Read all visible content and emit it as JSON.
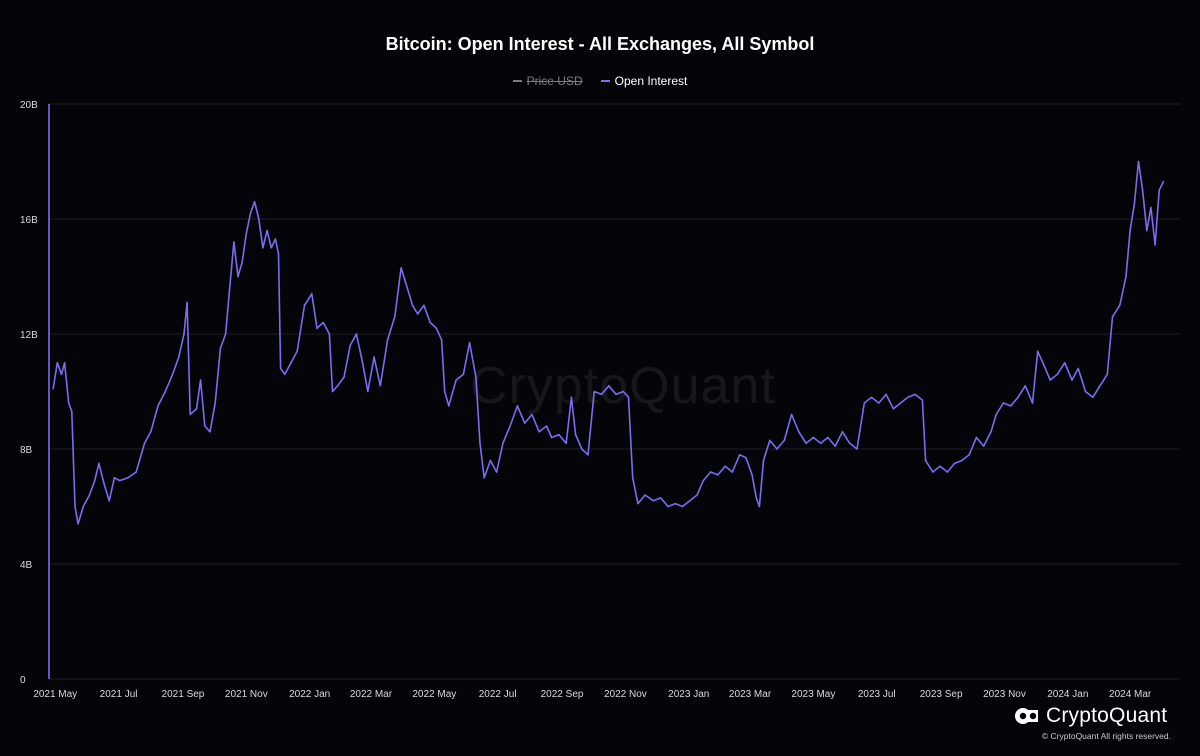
{
  "chart_data": {
    "type": "line",
    "title": "Bitcoin: Open Interest - All Exchanges, All Symbol",
    "legend": [
      {
        "name": "Price USD",
        "color": "#7a7a82",
        "hidden": true
      },
      {
        "name": "Open Interest",
        "color": "#7b6cf0",
        "hidden": false
      }
    ],
    "legend_position": "top-center",
    "ylim": [
      0,
      20000000000
    ],
    "y_ticks": [
      {
        "value": 0,
        "label": "0"
      },
      {
        "value": 4000000000,
        "label": "4B"
      },
      {
        "value": 8000000000,
        "label": "8B"
      },
      {
        "value": 12000000000,
        "label": "12B"
      },
      {
        "value": 16000000000,
        "label": "16B"
      },
      {
        "value": 20000000000,
        "label": "20B"
      }
    ],
    "xlim": [
      "2021-04-25",
      "2024-04-18"
    ],
    "x_ticks": [
      {
        "date": "2021-05-01",
        "label": "2021 May"
      },
      {
        "date": "2021-07-01",
        "label": "2021 Jul"
      },
      {
        "date": "2021-09-01",
        "label": "2021 Sep"
      },
      {
        "date": "2021-11-01",
        "label": "2021 Nov"
      },
      {
        "date": "2022-01-01",
        "label": "2022 Jan"
      },
      {
        "date": "2022-03-01",
        "label": "2022 Mar"
      },
      {
        "date": "2022-05-01",
        "label": "2022 May"
      },
      {
        "date": "2022-07-01",
        "label": "2022 Jul"
      },
      {
        "date": "2022-09-01",
        "label": "2022 Sep"
      },
      {
        "date": "2022-11-01",
        "label": "2022 Nov"
      },
      {
        "date": "2023-01-01",
        "label": "2023 Jan"
      },
      {
        "date": "2023-03-01",
        "label": "2023 Mar"
      },
      {
        "date": "2023-05-01",
        "label": "2023 May"
      },
      {
        "date": "2023-07-01",
        "label": "2023 Jul"
      },
      {
        "date": "2023-09-01",
        "label": "2023 Sep"
      },
      {
        "date": "2023-11-01",
        "label": "2023 Nov"
      },
      {
        "date": "2024-01-01",
        "label": "2024 Jan"
      },
      {
        "date": "2024-03-01",
        "label": "2024 Mar"
      }
    ],
    "grid": true,
    "series": [
      {
        "name": "Open Interest",
        "color": "#7b6cf0",
        "points": [
          [
            "2021-04-29",
            10.1
          ],
          [
            "2021-05-03",
            11.0
          ],
          [
            "2021-05-07",
            10.6
          ],
          [
            "2021-05-10",
            11.0
          ],
          [
            "2021-05-14",
            9.6
          ],
          [
            "2021-05-17",
            9.3
          ],
          [
            "2021-05-20",
            6.0
          ],
          [
            "2021-05-23",
            5.4
          ],
          [
            "2021-05-28",
            6.0
          ],
          [
            "2021-06-03",
            6.4
          ],
          [
            "2021-06-08",
            6.9
          ],
          [
            "2021-06-12",
            7.5
          ],
          [
            "2021-06-17",
            6.8
          ],
          [
            "2021-06-22",
            6.2
          ],
          [
            "2021-06-27",
            7.0
          ],
          [
            "2021-07-02",
            6.9
          ],
          [
            "2021-07-10",
            7.0
          ],
          [
            "2021-07-18",
            7.2
          ],
          [
            "2021-07-26",
            8.2
          ],
          [
            "2021-08-01",
            8.6
          ],
          [
            "2021-08-08",
            9.5
          ],
          [
            "2021-08-15",
            10.0
          ],
          [
            "2021-08-22",
            10.6
          ],
          [
            "2021-08-28",
            11.2
          ],
          [
            "2021-09-02",
            12.0
          ],
          [
            "2021-09-05",
            13.1
          ],
          [
            "2021-09-08",
            9.2
          ],
          [
            "2021-09-14",
            9.4
          ],
          [
            "2021-09-18",
            10.4
          ],
          [
            "2021-09-22",
            8.8
          ],
          [
            "2021-09-27",
            8.6
          ],
          [
            "2021-10-02",
            9.6
          ],
          [
            "2021-10-07",
            11.5
          ],
          [
            "2021-10-12",
            12.0
          ],
          [
            "2021-10-16",
            13.6
          ],
          [
            "2021-10-20",
            15.2
          ],
          [
            "2021-10-24",
            14.0
          ],
          [
            "2021-10-28",
            14.5
          ],
          [
            "2021-11-01",
            15.5
          ],
          [
            "2021-11-05",
            16.2
          ],
          [
            "2021-11-09",
            16.6
          ],
          [
            "2021-11-13",
            16.0
          ],
          [
            "2021-11-17",
            15.0
          ],
          [
            "2021-11-21",
            15.6
          ],
          [
            "2021-11-25",
            15.0
          ],
          [
            "2021-11-29",
            15.3
          ],
          [
            "2021-12-02",
            14.8
          ],
          [
            "2021-12-04",
            10.8
          ],
          [
            "2021-12-08",
            10.6
          ],
          [
            "2021-12-14",
            11.0
          ],
          [
            "2021-12-20",
            11.4
          ],
          [
            "2021-12-27",
            13.0
          ],
          [
            "2022-01-03",
            13.4
          ],
          [
            "2022-01-08",
            12.2
          ],
          [
            "2022-01-14",
            12.4
          ],
          [
            "2022-01-20",
            12.0
          ],
          [
            "2022-01-23",
            10.0
          ],
          [
            "2022-01-28",
            10.2
          ],
          [
            "2022-02-03",
            10.5
          ],
          [
            "2022-02-09",
            11.6
          ],
          [
            "2022-02-15",
            12.0
          ],
          [
            "2022-02-21",
            11.0
          ],
          [
            "2022-02-26",
            10.0
          ],
          [
            "2022-03-04",
            11.2
          ],
          [
            "2022-03-10",
            10.2
          ],
          [
            "2022-03-17",
            11.8
          ],
          [
            "2022-03-24",
            12.6
          ],
          [
            "2022-03-30",
            14.3
          ],
          [
            "2022-04-05",
            13.6
          ],
          [
            "2022-04-10",
            13.0
          ],
          [
            "2022-04-15",
            12.7
          ],
          [
            "2022-04-21",
            13.0
          ],
          [
            "2022-04-27",
            12.4
          ],
          [
            "2022-05-03",
            12.2
          ],
          [
            "2022-05-08",
            11.8
          ],
          [
            "2022-05-11",
            10.0
          ],
          [
            "2022-05-15",
            9.5
          ],
          [
            "2022-05-22",
            10.4
          ],
          [
            "2022-05-29",
            10.6
          ],
          [
            "2022-06-04",
            11.7
          ],
          [
            "2022-06-10",
            10.5
          ],
          [
            "2022-06-14",
            8.2
          ],
          [
            "2022-06-18",
            7.0
          ],
          [
            "2022-06-24",
            7.6
          ],
          [
            "2022-06-30",
            7.2
          ],
          [
            "2022-07-06",
            8.2
          ],
          [
            "2022-07-13",
            8.8
          ],
          [
            "2022-07-20",
            9.5
          ],
          [
            "2022-07-27",
            8.9
          ],
          [
            "2022-08-03",
            9.2
          ],
          [
            "2022-08-10",
            8.6
          ],
          [
            "2022-08-17",
            8.8
          ],
          [
            "2022-08-22",
            8.4
          ],
          [
            "2022-08-29",
            8.5
          ],
          [
            "2022-09-05",
            8.2
          ],
          [
            "2022-09-10",
            9.8
          ],
          [
            "2022-09-14",
            8.5
          ],
          [
            "2022-09-20",
            8.0
          ],
          [
            "2022-09-26",
            7.8
          ],
          [
            "2022-10-02",
            10.0
          ],
          [
            "2022-10-09",
            9.9
          ],
          [
            "2022-10-16",
            10.2
          ],
          [
            "2022-10-23",
            9.9
          ],
          [
            "2022-10-30",
            10.0
          ],
          [
            "2022-11-04",
            9.8
          ],
          [
            "2022-11-08",
            7.0
          ],
          [
            "2022-11-13",
            6.1
          ],
          [
            "2022-11-20",
            6.4
          ],
          [
            "2022-11-28",
            6.2
          ],
          [
            "2022-12-05",
            6.3
          ],
          [
            "2022-12-12",
            6.0
          ],
          [
            "2022-12-19",
            6.1
          ],
          [
            "2022-12-26",
            6.0
          ],
          [
            "2023-01-02",
            6.2
          ],
          [
            "2023-01-09",
            6.4
          ],
          [
            "2023-01-15",
            6.9
          ],
          [
            "2023-01-22",
            7.2
          ],
          [
            "2023-01-29",
            7.1
          ],
          [
            "2023-02-05",
            7.4
          ],
          [
            "2023-02-12",
            7.2
          ],
          [
            "2023-02-19",
            7.8
          ],
          [
            "2023-02-25",
            7.7
          ],
          [
            "2023-03-03",
            7.1
          ],
          [
            "2023-03-07",
            6.3
          ],
          [
            "2023-03-10",
            6.0
          ],
          [
            "2023-03-14",
            7.6
          ],
          [
            "2023-03-20",
            8.3
          ],
          [
            "2023-03-27",
            8.0
          ],
          [
            "2023-04-03",
            8.3
          ],
          [
            "2023-04-10",
            9.2
          ],
          [
            "2023-04-17",
            8.6
          ],
          [
            "2023-04-24",
            8.2
          ],
          [
            "2023-05-01",
            8.4
          ],
          [
            "2023-05-08",
            8.2
          ],
          [
            "2023-05-15",
            8.4
          ],
          [
            "2023-05-22",
            8.1
          ],
          [
            "2023-05-29",
            8.6
          ],
          [
            "2023-06-05",
            8.2
          ],
          [
            "2023-06-12",
            8.0
          ],
          [
            "2023-06-19",
            9.6
          ],
          [
            "2023-06-26",
            9.8
          ],
          [
            "2023-07-03",
            9.6
          ],
          [
            "2023-07-10",
            9.9
          ],
          [
            "2023-07-17",
            9.4
          ],
          [
            "2023-07-24",
            9.6
          ],
          [
            "2023-07-31",
            9.8
          ],
          [
            "2023-08-07",
            9.9
          ],
          [
            "2023-08-14",
            9.7
          ],
          [
            "2023-08-17",
            7.6
          ],
          [
            "2023-08-24",
            7.2
          ],
          [
            "2023-08-31",
            7.4
          ],
          [
            "2023-09-07",
            7.2
          ],
          [
            "2023-09-14",
            7.5
          ],
          [
            "2023-09-21",
            7.6
          ],
          [
            "2023-09-28",
            7.8
          ],
          [
            "2023-10-05",
            8.4
          ],
          [
            "2023-10-12",
            8.1
          ],
          [
            "2023-10-19",
            8.6
          ],
          [
            "2023-10-24",
            9.2
          ],
          [
            "2023-10-31",
            9.6
          ],
          [
            "2023-11-07",
            9.5
          ],
          [
            "2023-11-14",
            9.8
          ],
          [
            "2023-11-21",
            10.2
          ],
          [
            "2023-11-28",
            9.6
          ],
          [
            "2023-12-03",
            11.4
          ],
          [
            "2023-12-08",
            11.0
          ],
          [
            "2023-12-15",
            10.4
          ],
          [
            "2023-12-22",
            10.6
          ],
          [
            "2023-12-29",
            11.0
          ],
          [
            "2024-01-05",
            10.4
          ],
          [
            "2024-01-11",
            10.8
          ],
          [
            "2024-01-18",
            10.0
          ],
          [
            "2024-01-25",
            9.8
          ],
          [
            "2024-02-01",
            10.2
          ],
          [
            "2024-02-08",
            10.6
          ],
          [
            "2024-02-13",
            12.6
          ],
          [
            "2024-02-20",
            13.0
          ],
          [
            "2024-02-26",
            14.0
          ],
          [
            "2024-03-01",
            15.6
          ],
          [
            "2024-03-05",
            16.5
          ],
          [
            "2024-03-09",
            18.0
          ],
          [
            "2024-03-13",
            17.0
          ],
          [
            "2024-03-17",
            15.6
          ],
          [
            "2024-03-21",
            16.4
          ],
          [
            "2024-03-25",
            15.1
          ],
          [
            "2024-03-29",
            17.0
          ],
          [
            "2024-04-02",
            17.3
          ]
        ]
      }
    ]
  },
  "watermark": "CryptoQuant",
  "brand": {
    "name": "CryptoQuant",
    "copyright": "© CryptoQuant All rights reserved."
  }
}
